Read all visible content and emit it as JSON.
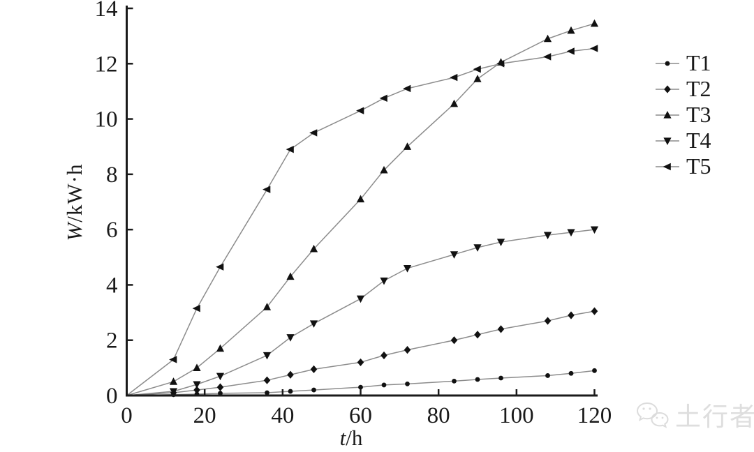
{
  "watermark": {
    "text": "土行者",
    "logo": "wechat-bubbles-icon",
    "color": "#dedede"
  },
  "chart_data": {
    "type": "line",
    "title": "",
    "xlabel": "t/h",
    "ylabel": "W/kW·h",
    "xlabel_parts": {
      "italic": "t",
      "rest": "/h"
    },
    "ylabel_parts": {
      "italic": "W",
      "rest": "/kW·h"
    },
    "xlim": [
      0,
      120
    ],
    "ylim": [
      0,
      14
    ],
    "x_ticks": [
      0,
      20,
      40,
      60,
      80,
      100,
      120
    ],
    "y_ticks": [
      0,
      2,
      4,
      6,
      8,
      10,
      12,
      14
    ],
    "grid": false,
    "legend_position": "right-outside",
    "line_color": "#8c8c8c",
    "marker_color": "#111111",
    "axis_color": "#1a1a1a",
    "x": [
      0,
      12,
      18,
      24,
      36,
      42,
      48,
      60,
      66,
      72,
      84,
      90,
      96,
      108,
      114,
      120
    ],
    "series": [
      {
        "name": "T1",
        "marker": "circle-small",
        "values": [
          0,
          0.03,
          0.05,
          0.08,
          0.1,
          0.15,
          0.2,
          0.3,
          0.38,
          0.42,
          0.52,
          0.58,
          0.63,
          0.72,
          0.8,
          0.9
        ]
      },
      {
        "name": "T2",
        "marker": "diamond",
        "values": [
          0,
          0.1,
          0.2,
          0.3,
          0.55,
          0.75,
          0.95,
          1.2,
          1.45,
          1.65,
          2.0,
          2.2,
          2.4,
          2.7,
          2.9,
          3.05
        ]
      },
      {
        "name": "T3",
        "marker": "triangle-up",
        "values": [
          0,
          0.5,
          1.0,
          1.7,
          3.2,
          4.3,
          5.3,
          7.1,
          8.15,
          9.0,
          10.55,
          11.45,
          12.05,
          12.9,
          13.2,
          13.45
        ]
      },
      {
        "name": "T4",
        "marker": "triangle-down",
        "values": [
          0,
          0.15,
          0.4,
          0.7,
          1.45,
          2.1,
          2.6,
          3.5,
          4.15,
          4.6,
          5.1,
          5.35,
          5.55,
          5.8,
          5.9,
          6.0
        ]
      },
      {
        "name": "T5",
        "marker": "triangle-left",
        "values": [
          0,
          1.3,
          3.15,
          4.65,
          7.45,
          8.9,
          9.5,
          10.3,
          10.75,
          11.1,
          11.5,
          11.8,
          12.0,
          12.25,
          12.45,
          12.55
        ]
      }
    ]
  }
}
